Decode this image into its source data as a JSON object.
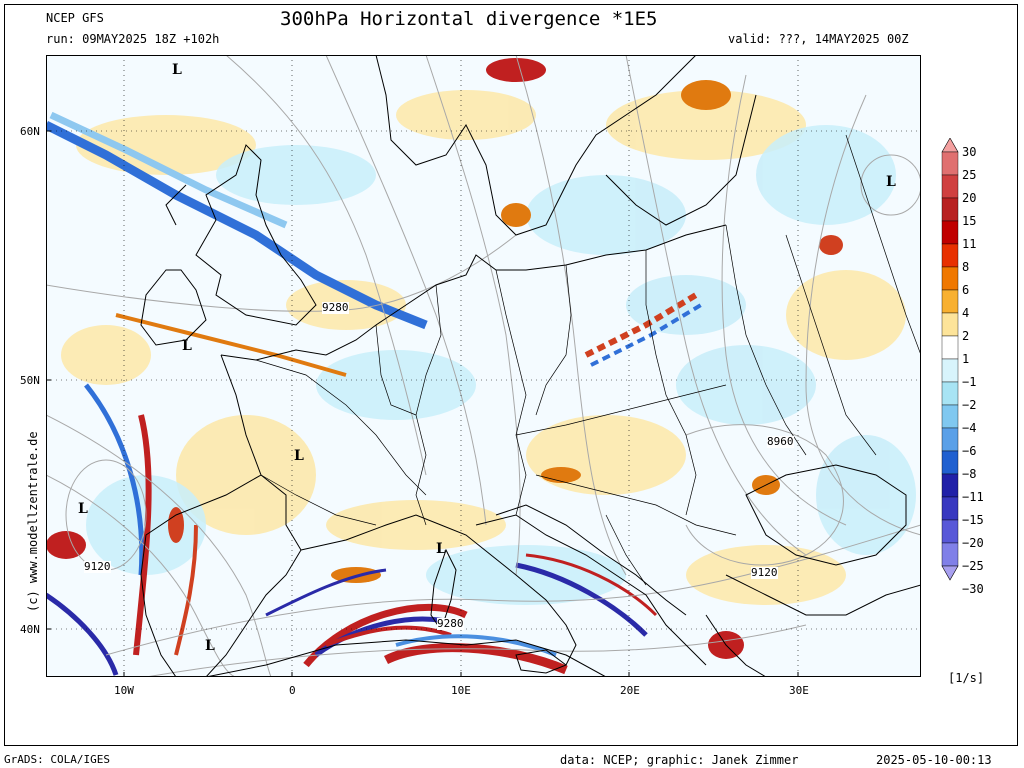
{
  "header": {
    "model": "NCEP GFS",
    "run": "run: 09MAY2025 18Z +102h",
    "title": "300hPa Horizontal divergence *1E5",
    "valid": "valid: ???, 14MAY2025 00Z"
  },
  "map": {
    "lon_ticks": [
      "10W",
      "0",
      "10E",
      "20E",
      "30E"
    ],
    "lat_ticks": [
      "60N",
      "50N",
      "40N"
    ],
    "contour_labels": [
      "9280",
      "8960",
      "9120",
      "9120",
      "9280"
    ],
    "low_marker": "L",
    "watermark": "(c) www.modellzentrale.de",
    "colors": {
      "positive_strong": "#c02020",
      "positive": "#f08c00",
      "positive_weak": "#fde49a",
      "negative_weak": "#c8eefa",
      "negative": "#4a8fe0",
      "negative_strong": "#2a2aa8",
      "land_outline": "#000000",
      "contour": "#a0a0a0"
    }
  },
  "colorbar": {
    "unit": "[1/s]",
    "levels": [
      "30",
      "25",
      "20",
      "15",
      "11",
      "8",
      "6",
      "4",
      "2",
      "1",
      "−1",
      "−2",
      "−4",
      "−6",
      "−8",
      "−11",
      "−15",
      "−20",
      "−25",
      "−30"
    ],
    "colors": [
      "#f4a0a0",
      "#e07070",
      "#d04040",
      "#b82020",
      "#c00000",
      "#e83000",
      "#f07800",
      "#f8b030",
      "#fde49a",
      "#ffffff",
      "#d8f4fc",
      "#a8e4f4",
      "#80c8f0",
      "#5aa0e8",
      "#2060d0",
      "#2020a8",
      "#3838c0",
      "#5858d8",
      "#8080e8",
      "#a8a0f0"
    ]
  },
  "footer": {
    "software": "GrADS: COLA/IGES",
    "credits": "data: NCEP; graphic: Janek Zimmer",
    "timestamp": "2025-05-10-00:13"
  }
}
